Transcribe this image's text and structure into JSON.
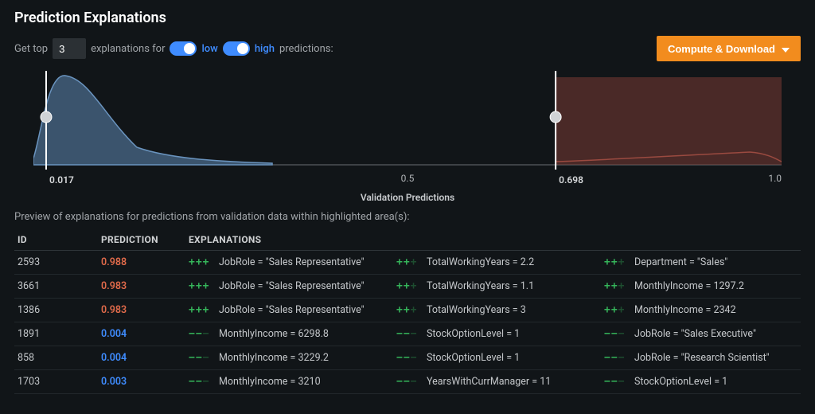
{
  "title": "Prediction Explanations",
  "controls": {
    "get_top_prefix": "Get top",
    "top_n": "3",
    "explanations_for": "explanations for",
    "low_label": "low",
    "high_label": "high",
    "predictions_suffix": "predictions:",
    "low_toggle_on": true,
    "high_toggle_on": true
  },
  "compute_button": "Compute & Download",
  "chart": {
    "axis_title": "Validation Predictions",
    "axis_mid": "0.5",
    "axis_right": "1.0",
    "threshold_low": 0.017,
    "threshold_high": 0.698,
    "threshold_low_label": "0.017",
    "threshold_high_label": "0.698",
    "low_fill": "#4a6a8a",
    "low_stroke": "#6a94bf",
    "high_fill": "#7a3a34",
    "high_stroke": "#9a4a40",
    "baseline": "#6b7075"
  },
  "preview_caption": "Preview of explanations for predictions from validation data within highlighted area(s):",
  "table": {
    "headers": {
      "id": "ID",
      "prediction": "PREDICTION",
      "explanations": "EXPLANATIONS"
    }
  },
  "rows": [
    {
      "id": "2593",
      "pred": "0.988",
      "pred_class": "high",
      "expl": [
        {
          "sign": "pos",
          "strength": 3,
          "text": "JobRole = \"Sales Representative\""
        },
        {
          "sign": "pos",
          "strength": 2,
          "text": "TotalWorkingYears = 2.2"
        },
        {
          "sign": "pos",
          "strength": 2,
          "text": "Department = \"Sales\""
        }
      ]
    },
    {
      "id": "3661",
      "pred": "0.983",
      "pred_class": "high",
      "expl": [
        {
          "sign": "pos",
          "strength": 3,
          "text": "JobRole = \"Sales Representative\""
        },
        {
          "sign": "pos",
          "strength": 2,
          "text": "TotalWorkingYears = 1.1"
        },
        {
          "sign": "pos",
          "strength": 2,
          "text": "MonthlyIncome = 1297.2"
        }
      ]
    },
    {
      "id": "1386",
      "pred": "0.983",
      "pred_class": "high",
      "expl": [
        {
          "sign": "pos",
          "strength": 3,
          "text": "JobRole = \"Sales Representative\""
        },
        {
          "sign": "pos",
          "strength": 2,
          "text": "TotalWorkingYears = 3"
        },
        {
          "sign": "pos",
          "strength": 2,
          "text": "MonthlyIncome = 2342"
        }
      ]
    },
    {
      "id": "1891",
      "pred": "0.004",
      "pred_class": "low",
      "expl": [
        {
          "sign": "neg",
          "strength": 2,
          "text": "MonthlyIncome = 6298.8"
        },
        {
          "sign": "neg",
          "strength": 2,
          "text": "StockOptionLevel = 1"
        },
        {
          "sign": "neg",
          "strength": 2,
          "text": "JobRole = \"Sales Executive\""
        }
      ]
    },
    {
      "id": "858",
      "pred": "0.004",
      "pred_class": "low",
      "expl": [
        {
          "sign": "neg",
          "strength": 2,
          "text": "MonthlyIncome = 3229.2"
        },
        {
          "sign": "neg",
          "strength": 2,
          "text": "StockOptionLevel = 1"
        },
        {
          "sign": "neg",
          "strength": 2,
          "text": "JobRole = \"Research Scientist\""
        }
      ]
    },
    {
      "id": "1703",
      "pred": "0.003",
      "pred_class": "low",
      "expl": [
        {
          "sign": "neg",
          "strength": 2,
          "text": "MonthlyIncome = 3210"
        },
        {
          "sign": "neg",
          "strength": 2,
          "text": "YearsWithCurrManager = 11"
        },
        {
          "sign": "neg",
          "strength": 2,
          "text": "StockOptionLevel = 1"
        }
      ]
    }
  ]
}
